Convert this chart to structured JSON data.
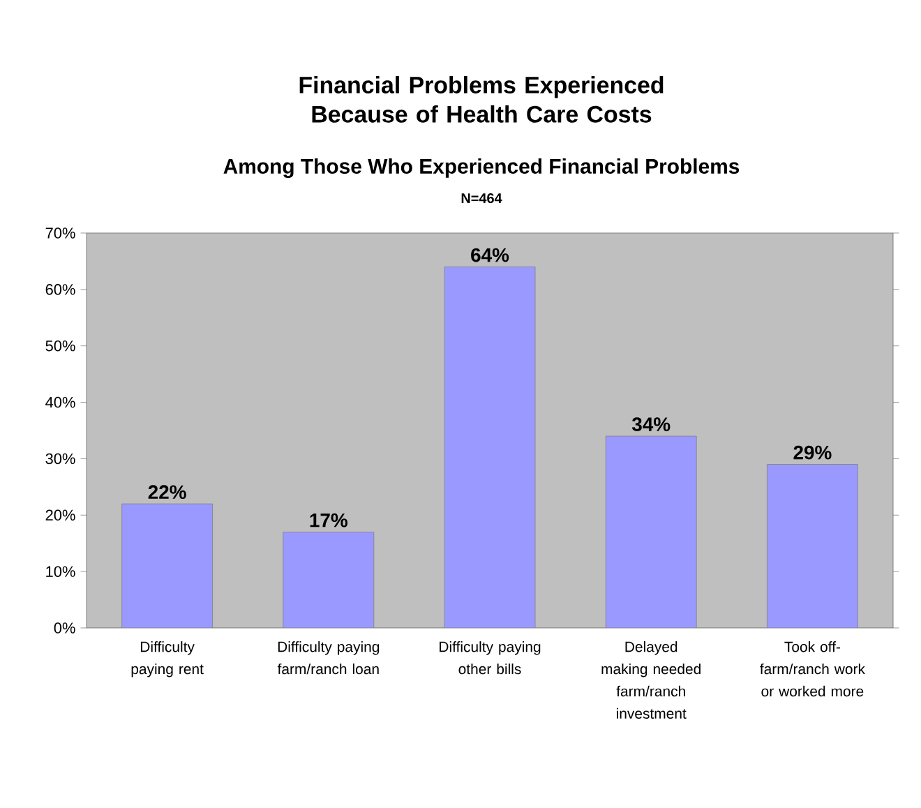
{
  "chart_data": {
    "type": "bar",
    "title": "Financial Problems Experienced Because of Health Care Costs",
    "subtitle": "Among Those Who Experienced Financial Problems",
    "annotations": [
      "N=464"
    ],
    "categories": [
      "Difficulty paying rent",
      "Difficulty paying farm/ranch loan",
      "Difficulty paying other bills",
      "Delayed making needed farm/ranch investment",
      "Took off-farm/ranch work or worked more"
    ],
    "values": [
      22,
      17,
      64,
      34,
      29
    ],
    "value_labels": [
      "22%",
      "17%",
      "64%",
      "34%",
      "29%"
    ],
    "color": "#9999ff",
    "ylim": [
      0,
      70
    ],
    "yticks": [
      {
        "value": 0,
        "label": "0%"
      },
      {
        "value": 10,
        "label": "10%"
      },
      {
        "value": 20,
        "label": "20%"
      },
      {
        "value": 30,
        "label": "30%"
      },
      {
        "value": 40,
        "label": "40%"
      },
      {
        "value": 50,
        "label": "50%"
      },
      {
        "value": 60,
        "label": "60%"
      },
      {
        "value": 70,
        "label": "70%"
      }
    ],
    "grid": false
  }
}
